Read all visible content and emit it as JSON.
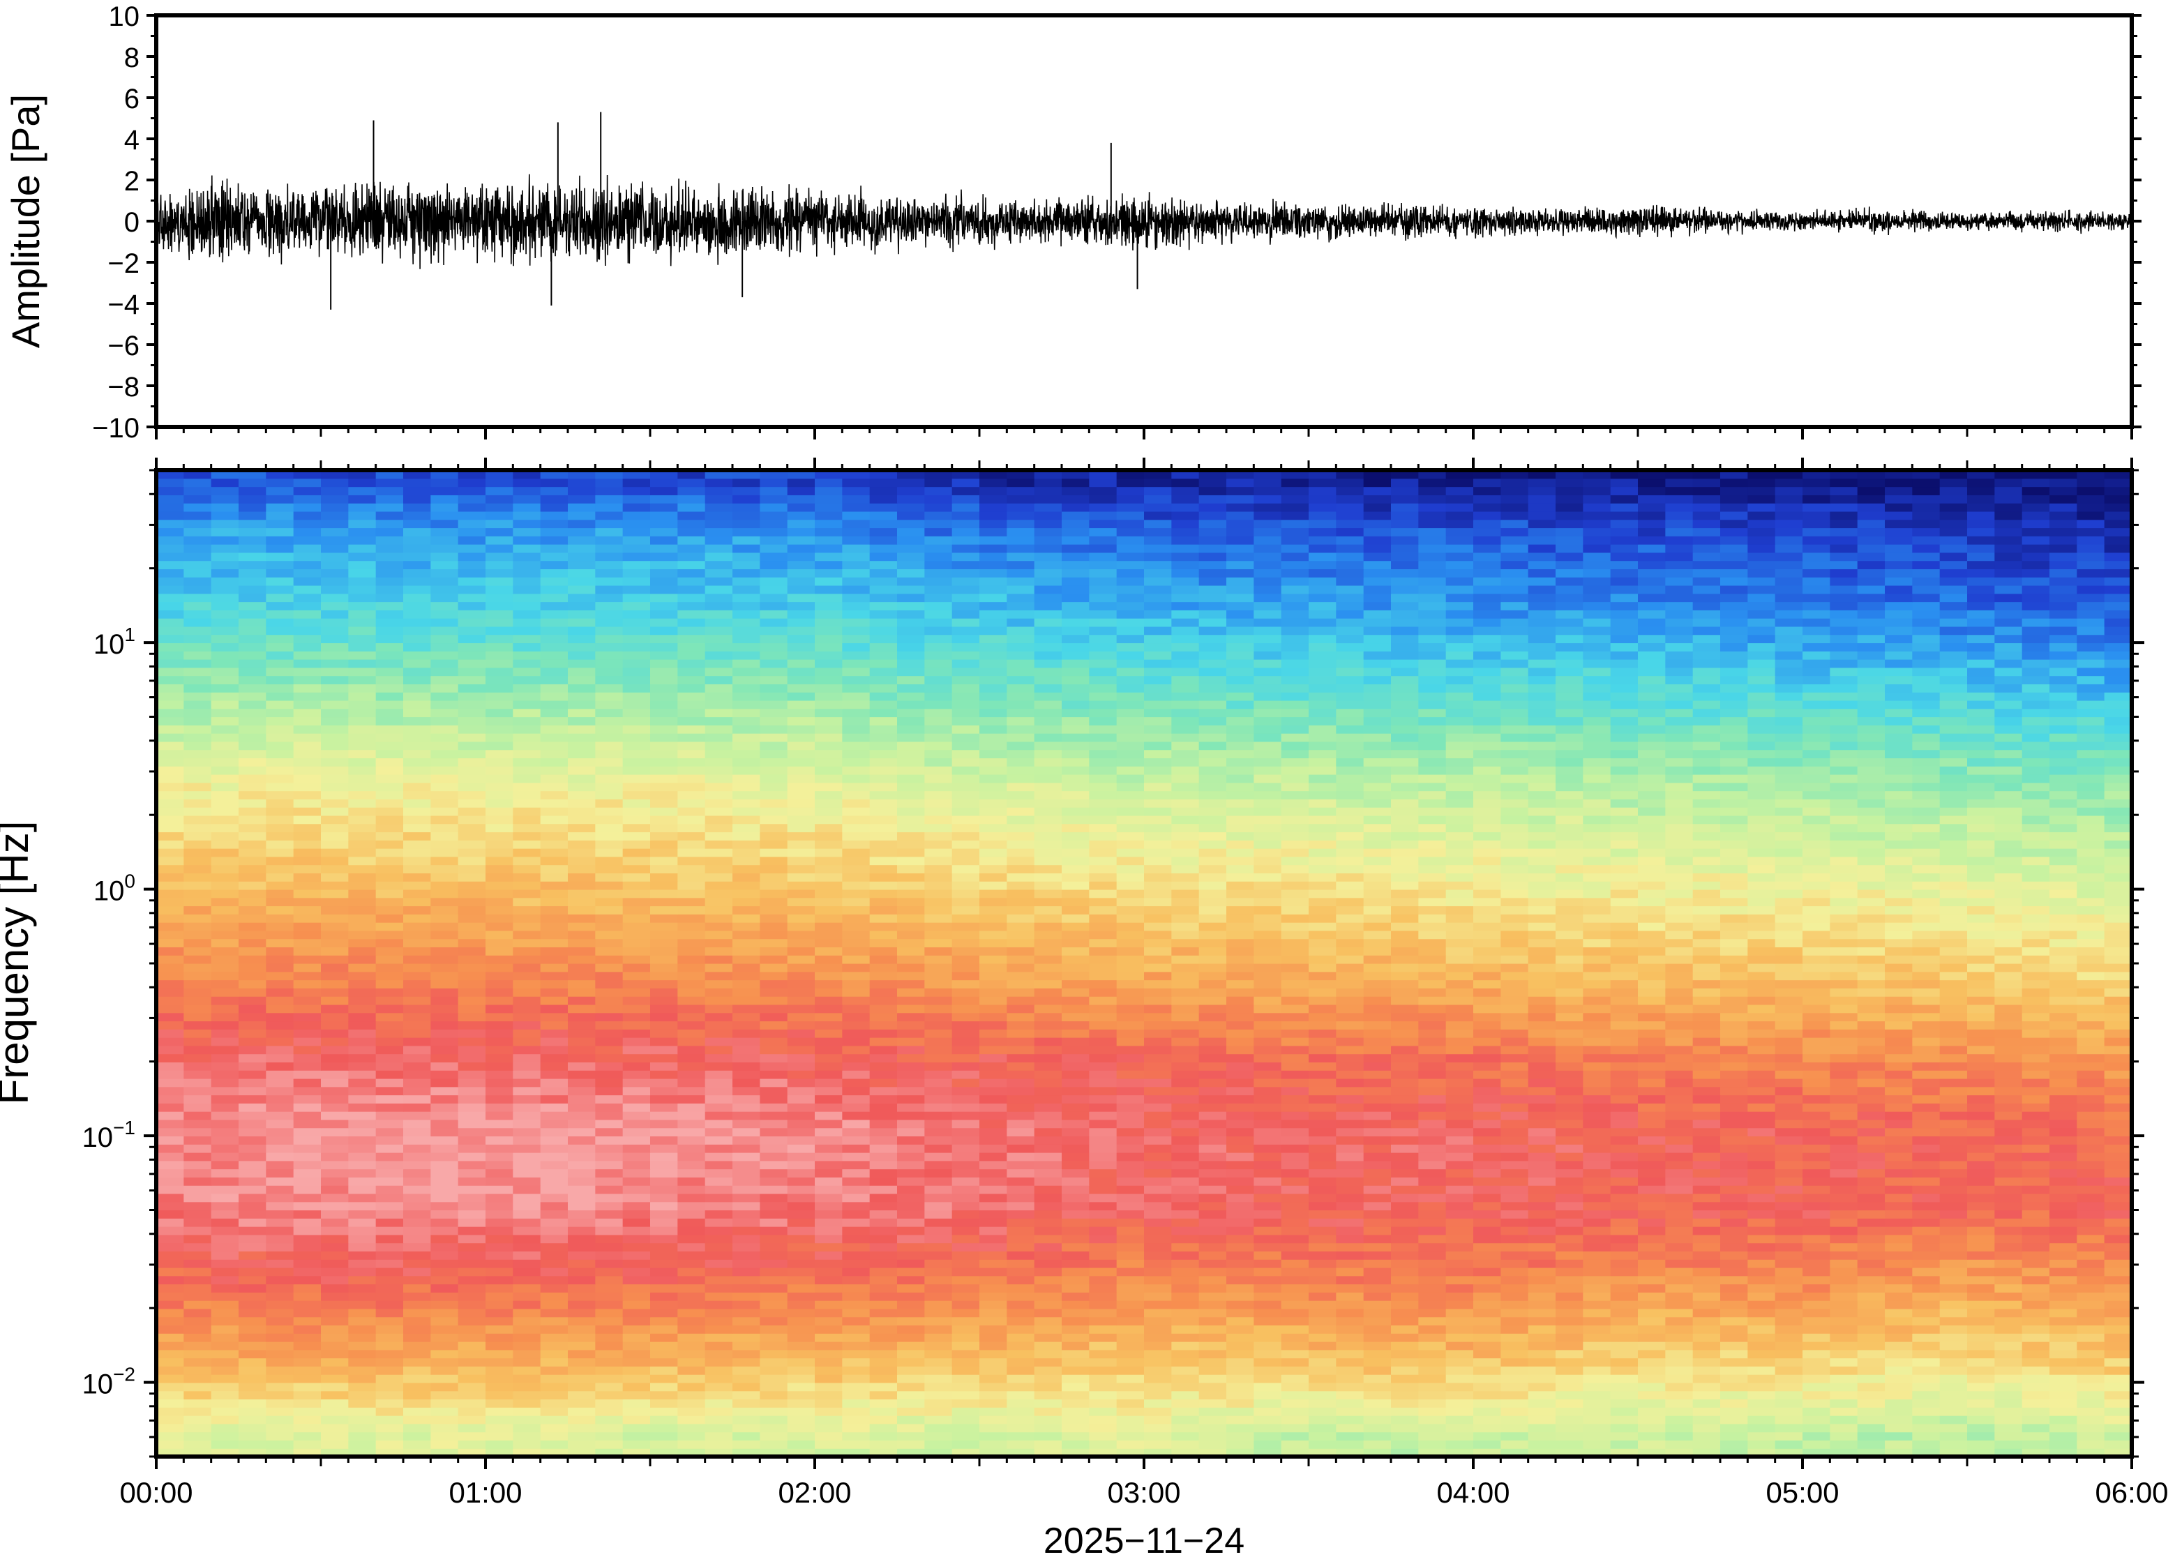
{
  "chart_data": [
    {
      "type": "line",
      "panel": "waveform",
      "title": "",
      "ylabel": "Amplitude [Pa]",
      "ylim": [
        -10,
        10
      ],
      "y_ticks": [
        10,
        8,
        6,
        4,
        2,
        0,
        -2,
        -4,
        -6,
        -8,
        -10
      ],
      "y_tick_labels": [
        "10",
        "8",
        "6",
        "4",
        "2",
        "0",
        "−2",
        "−4",
        "−6",
        "−8",
        "−10"
      ],
      "xlim": [
        "00:00",
        "06:00"
      ],
      "grid": false,
      "series": [
        {
          "values_note_free": true,
          "color": "#000000",
          "envelope": {
            "t_hours": [
              0.0,
              0.25,
              0.5,
              0.75,
              1.0,
              1.25,
              1.5,
              1.75,
              2.0,
              2.25,
              2.5,
              2.75,
              2.9,
              3.0,
              3.25,
              3.5,
              3.75,
              4.0,
              4.25,
              4.5,
              4.75,
              5.0,
              5.25,
              5.5,
              5.75,
              6.0
            ],
            "amp_pa": [
              2.0,
              2.2,
              2.2,
              2.2,
              2.2,
              2.4,
              2.2,
              2.0,
              1.8,
              1.6,
              1.4,
              1.2,
              1.6,
              1.5,
              1.2,
              1.0,
              1.0,
              0.9,
              0.7,
              0.9,
              0.7,
              0.6,
              0.7,
              0.5,
              0.6,
              0.5
            ]
          },
          "peaks": [
            {
              "t_hours": 0.66,
              "amp_pa": 4.9
            },
            {
              "t_hours": 0.53,
              "amp_pa": -4.3
            },
            {
              "t_hours": 1.22,
              "amp_pa": 4.8
            },
            {
              "t_hours": 1.35,
              "amp_pa": 5.3
            },
            {
              "t_hours": 1.2,
              "amp_pa": -4.1
            },
            {
              "t_hours": 1.78,
              "amp_pa": -3.7
            },
            {
              "t_hours": 2.9,
              "amp_pa": 3.8
            },
            {
              "t_hours": 2.98,
              "amp_pa": -3.3
            }
          ]
        }
      ]
    },
    {
      "type": "heatmap",
      "panel": "spectrogram",
      "title": "",
      "ylabel": "Frequency [Hz]",
      "yscale": "log",
      "ylim": [
        0.005,
        50
      ],
      "y_ticks": [
        10,
        1,
        0.1,
        0.01
      ],
      "y_tick_labels": [
        {
          "base": "10",
          "exp": "1"
        },
        {
          "base": "10",
          "exp": "0"
        },
        {
          "base": "10",
          "exp": "−1"
        },
        {
          "base": "10",
          "exp": "−2"
        }
      ],
      "xlim": [
        "00:00",
        "06:00"
      ],
      "x_tick_labels": [
        "00:00",
        "01:00",
        "02:00",
        "03:00",
        "04:00",
        "05:00",
        "06:00"
      ],
      "xlabel": "2025−11−24",
      "colormap": [
        "#0b0f6e",
        "#1f3ed0",
        "#2a8ff0",
        "#49d6e8",
        "#7fe6b8",
        "#c8f2a0",
        "#f4f09a",
        "#f8c060",
        "#f79050",
        "#f05a5a",
        "#f8a8a8"
      ],
      "time_hours": [
        0,
        0.5,
        1,
        1.5,
        2,
        2.5,
        3,
        3.5,
        4,
        4.5,
        5,
        5.5,
        6
      ],
      "freq_hz": [
        0.006,
        0.012,
        0.025,
        0.05,
        0.1,
        0.2,
        0.4,
        1,
        2.5,
        6,
        15,
        30,
        45
      ],
      "level_index": [
        [
          5.5,
          5.4,
          5.6,
          5.3,
          5.4,
          5.2,
          5.5,
          5.0,
          5.1,
          5.2,
          5.0,
          4.8,
          5.2
        ],
        [
          7.2,
          7.4,
          7.3,
          7.2,
          7.1,
          7.0,
          6.8,
          6.9,
          7.0,
          6.5,
          6.6,
          6.3,
          6.8
        ],
        [
          8.6,
          8.8,
          8.7,
          8.6,
          8.5,
          8.4,
          8.0,
          8.2,
          8.3,
          7.9,
          8.0,
          7.6,
          7.9
        ],
        [
          9.5,
          9.6,
          9.7,
          9.6,
          9.4,
          9.3,
          9.0,
          9.1,
          9.0,
          8.9,
          8.9,
          8.7,
          8.8
        ],
        [
          9.6,
          9.8,
          9.9,
          9.8,
          9.7,
          9.4,
          9.2,
          9.2,
          9.1,
          9.0,
          8.9,
          8.8,
          8.7
        ],
        [
          9.2,
          9.3,
          9.2,
          9.2,
          9.1,
          8.9,
          8.8,
          8.6,
          8.6,
          8.3,
          8.2,
          8.0,
          7.8
        ],
        [
          8.3,
          8.3,
          8.3,
          8.2,
          8.1,
          7.8,
          7.6,
          7.5,
          7.4,
          7.1,
          7.1,
          6.9,
          6.6
        ],
        [
          7.1,
          7.1,
          7.0,
          7.0,
          6.9,
          6.6,
          6.4,
          6.3,
          6.1,
          6.0,
          5.9,
          5.7,
          5.4
        ],
        [
          6.0,
          6.0,
          5.9,
          5.9,
          5.8,
          5.5,
          5.2,
          5.1,
          5.0,
          4.8,
          4.7,
          4.5,
          4.3
        ],
        [
          4.5,
          4.5,
          4.4,
          4.4,
          4.3,
          4.0,
          3.8,
          3.6,
          3.5,
          3.4,
          3.2,
          3.0,
          2.7
        ],
        [
          3.0,
          3.0,
          2.9,
          2.9,
          2.8,
          2.6,
          2.3,
          2.2,
          2.0,
          1.9,
          1.7,
          1.5,
          1.2
        ],
        [
          2.2,
          2.2,
          2.1,
          2.1,
          2.0,
          1.6,
          1.4,
          1.3,
          1.2,
          1.1,
          1.0,
          0.8,
          0.6
        ],
        [
          1.2,
          1.2,
          1.1,
          1.1,
          1.0,
          0.6,
          0.5,
          0.4,
          0.3,
          0.3,
          0.2,
          0.1,
          0.0
        ]
      ],
      "grid": false
    }
  ]
}
